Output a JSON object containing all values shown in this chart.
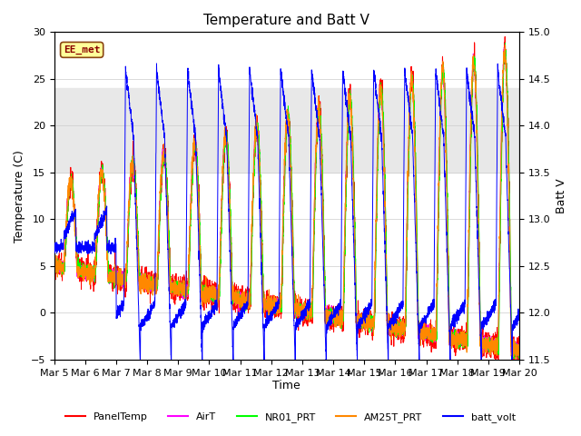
{
  "title": "Temperature and Batt V",
  "xlabel": "Time",
  "ylabel_left": "Temperature (C)",
  "ylabel_right": "Batt V",
  "ylim_left": [
    -5,
    30
  ],
  "ylim_right": [
    11.5,
    15.0
  ],
  "yticks_left": [
    -5,
    0,
    5,
    10,
    15,
    20,
    25,
    30
  ],
  "yticks_right": [
    11.5,
    12.0,
    12.5,
    13.0,
    13.5,
    14.0,
    14.5,
    15.0
  ],
  "xtick_labels": [
    "Mar 5",
    "Mar 6",
    "Mar 7",
    "Mar 8",
    "Mar 9",
    "Mar 10",
    "Mar 11",
    "Mar 12",
    "Mar 13",
    "Mar 14",
    "Mar 15",
    "Mar 16",
    "Mar 17",
    "Mar 18",
    "Mar 19",
    "Mar 20"
  ],
  "annotation_text": "EE_met",
  "shaded_region": [
    15,
    24
  ],
  "colors": {
    "PanelTemp": "#FF0000",
    "AirT": "#FF00FF",
    "NR01_PRT": "#00FF00",
    "AM25T_PRT": "#FF8800",
    "batt_volt": "#0000FF"
  },
  "background_color": "#ffffff",
  "grid_color": "#cccccc"
}
